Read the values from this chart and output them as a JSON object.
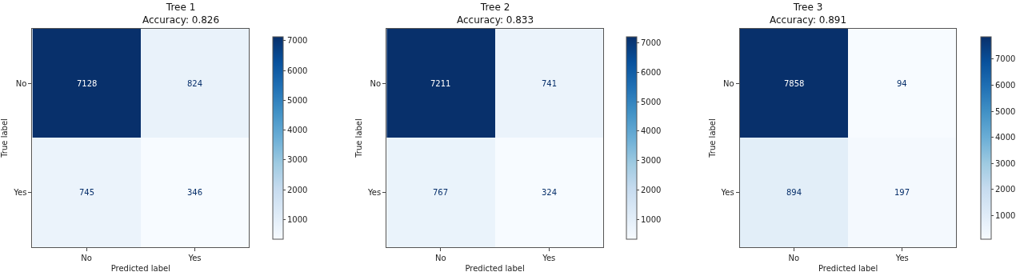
{
  "chart_data": [
    {
      "type": "heatmap",
      "title": "Tree 1",
      "subtitle": "Accuracy: 0.826",
      "xlabel": "Predicted label",
      "ylabel": "True label",
      "categories": [
        "No",
        "Yes"
      ],
      "y_categories": [
        "No",
        "Yes"
      ],
      "cells": [
        [
          7128,
          824
        ],
        [
          745,
          346
        ]
      ],
      "clim": [
        346,
        7128
      ],
      "cticks": [
        1000,
        2000,
        3000,
        4000,
        5000,
        6000,
        7000
      ],
      "data_labels": true
    },
    {
      "type": "heatmap",
      "title": "Tree 2",
      "subtitle": "Accuracy: 0.833",
      "xlabel": "Predicted label",
      "ylabel": "True label",
      "categories": [
        "No",
        "Yes"
      ],
      "y_categories": [
        "No",
        "Yes"
      ],
      "cells": [
        [
          7211,
          741
        ],
        [
          767,
          324
        ]
      ],
      "clim": [
        324,
        7211
      ],
      "cticks": [
        1000,
        2000,
        3000,
        4000,
        5000,
        6000,
        7000
      ],
      "data_labels": true
    },
    {
      "type": "heatmap",
      "title": "Tree 3",
      "subtitle": "Accuracy: 0.891",
      "xlabel": "Predicted label",
      "ylabel": "True label",
      "categories": [
        "No",
        "Yes"
      ],
      "y_categories": [
        "No",
        "Yes"
      ],
      "cells": [
        [
          7858,
          94
        ],
        [
          894,
          197
        ]
      ],
      "clim": [
        94,
        7858
      ],
      "cticks": [
        1000,
        2000,
        3000,
        4000,
        5000,
        6000,
        7000
      ],
      "data_labels": true
    }
  ]
}
